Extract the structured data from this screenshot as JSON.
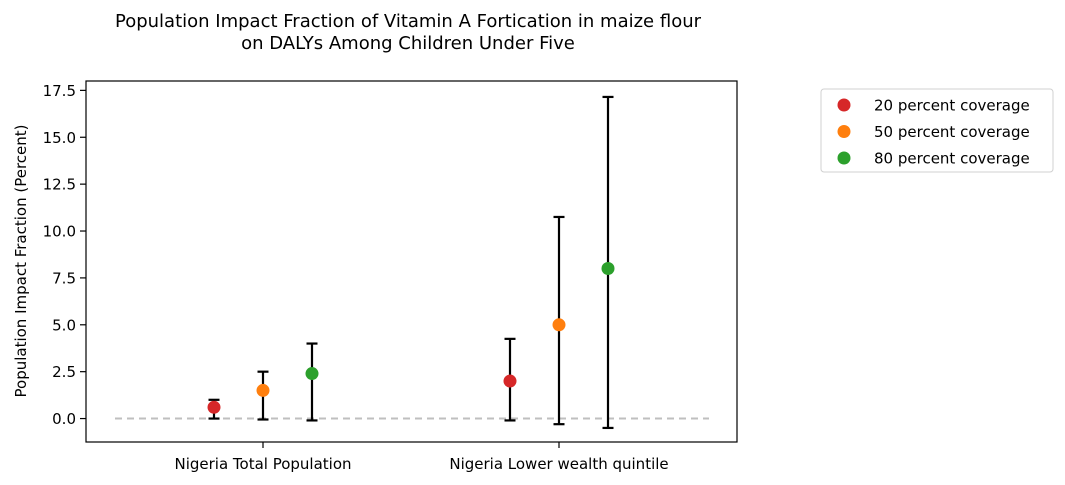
{
  "chart_data": {
    "type": "scatter",
    "title_line1": "Population Impact Fraction of Vitamin A Fortication in maize flour",
    "title_line2": "on DALYs Among Children Under Five",
    "xlabel": "",
    "ylabel": "Population Impact Fraction (Percent)",
    "ylim": [
      -1.25,
      18.0
    ],
    "yticks": [
      0.0,
      2.5,
      5.0,
      7.5,
      10.0,
      12.5,
      15.0,
      17.5
    ],
    "ytick_labels": [
      "0.0",
      "2.5",
      "5.0",
      "7.5",
      "10.0",
      "12.5",
      "15.0",
      "17.5"
    ],
    "categories": [
      "Nigeria Total Population",
      "Nigeria Lower wealth quintile"
    ],
    "reference_line": {
      "y": 0,
      "style": "dashed",
      "color": "#bfbfbf"
    },
    "legend_position": "outside-right",
    "grid": false,
    "series": [
      {
        "name": "20 percent coverage",
        "color": "#d62728",
        "values": [
          0.6,
          2.0
        ],
        "lower": [
          0.0,
          -0.1
        ],
        "upper": [
          1.0,
          4.25
        ]
      },
      {
        "name": "50 percent coverage",
        "color": "#ff7f0e",
        "values": [
          1.5,
          5.0
        ],
        "lower": [
          -0.05,
          -0.3
        ],
        "upper": [
          2.5,
          10.75
        ]
      },
      {
        "name": "80 percent coverage",
        "color": "#2ca02c",
        "values": [
          2.4,
          8.0
        ],
        "lower": [
          -0.1,
          -0.5
        ],
        "upper": [
          4.0,
          17.15
        ]
      }
    ]
  }
}
